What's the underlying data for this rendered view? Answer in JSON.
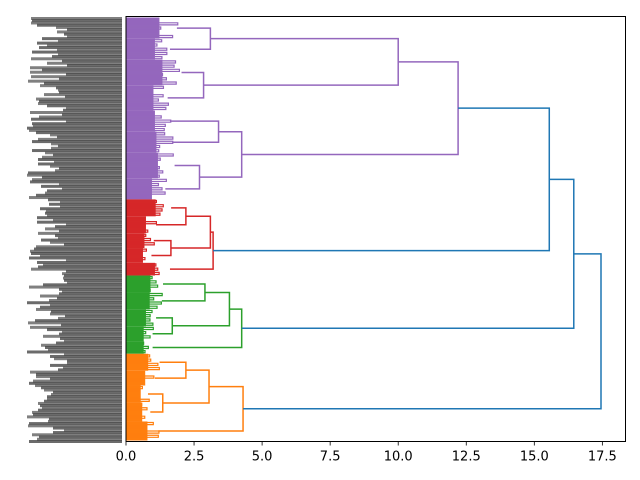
{
  "chart_data": {
    "type": "dendrogram",
    "orientation": "horizontal",
    "title": "",
    "xlabel": "",
    "ylabel": "",
    "xlim": [
      0,
      18.35
    ],
    "x_ticks": [
      0.0,
      2.5,
      5.0,
      7.5,
      10.0,
      12.5,
      15.0,
      17.5
    ],
    "x_tick_labels": [
      "0.0",
      "2.5",
      "5.0",
      "7.5",
      "10.0",
      "12.5",
      "15.0",
      "17.5"
    ],
    "grid": false,
    "leaf_labels_note": "Dense, overlapping leaf labels (illegible)",
    "colors": {
      "cluster_1": "#9467bd",
      "cluster_2": "#d62728",
      "cluster_3": "#2ca02c",
      "cluster_4": "#ff7f0e",
      "above_threshold": "#1f77b4"
    },
    "clusters": [
      {
        "name": "purple",
        "color": "#9467bd",
        "leaf_span": [
          0.0,
          0.43
        ],
        "merge_height": 12.2,
        "subclusters": [
          {
            "span": [
              0.0,
              0.22
            ],
            "height": 10.0,
            "children": [
              {
                "span": [
                  0.0,
                  0.1
                ],
                "height": 3.1,
                "children": [
                  {
                    "span": [
                      0.0,
                      0.05
                    ],
                    "height": 2.2
                  },
                  {
                    "span": [
                      0.05,
                      0.1
                    ],
                    "height": 1.9
                  }
                ]
              },
              {
                "span": [
                  0.1,
                  0.22
                ],
                "height": 2.85,
                "children": [
                  {
                    "span": [
                      0.1,
                      0.16
                    ],
                    "height": 2.4
                  },
                  {
                    "span": [
                      0.16,
                      0.22
                    ],
                    "height": 1.8
                  }
                ]
              }
            ]
          },
          {
            "span": [
              0.22,
              0.43
            ],
            "height": 4.25,
            "children": [
              {
                "span": [
                  0.22,
                  0.32
                ],
                "height": 3.4,
                "children": [
                  {
                    "span": [
                      0.22,
                      0.27
                    ],
                    "height": 1.9
                  },
                  {
                    "span": [
                      0.27,
                      0.32
                    ],
                    "height": 2.0
                  }
                ]
              },
              {
                "span": [
                  0.32,
                  0.43
                ],
                "height": 2.7,
                "children": [
                  {
                    "span": [
                      0.32,
                      0.38
                    ],
                    "height": 2.1
                  },
                  {
                    "span": [
                      0.38,
                      0.43
                    ],
                    "height": 1.7
                  }
                ]
              }
            ]
          }
        ]
      },
      {
        "name": "red",
        "color": "#d62728",
        "leaf_span": [
          0.43,
          0.61
        ],
        "merge_height": 3.2,
        "subclusters": [
          {
            "span": [
              0.43,
              0.58
            ],
            "height": 3.1,
            "children": [
              {
                "span": [
                  0.43,
                  0.51
                ],
                "height": 2.2,
                "children": [
                  {
                    "span": [
                      0.43,
                      0.47
                    ],
                    "height": 1.95
                  },
                  {
                    "span": [
                      0.47,
                      0.51
                    ],
                    "height": 1.3
                  }
                ]
              },
              {
                "span": [
                  0.51,
                  0.58
                ],
                "height": 1.65,
                "children": [
                  {
                    "span": [
                      0.51,
                      0.545
                    ],
                    "height": 1.2
                  },
                  {
                    "span": [
                      0.545,
                      0.58
                    ],
                    "height": 1.1
                  }
                ]
              }
            ]
          },
          {
            "span": [
              0.58,
              0.61
            ],
            "height": 1.9,
            "children": []
          }
        ]
      },
      {
        "name": "green",
        "color": "#2ca02c",
        "leaf_span": [
          0.61,
          0.795
        ],
        "merge_height": 4.25,
        "subclusters": [
          {
            "span": [
              0.61,
              0.765
            ],
            "height": 3.8,
            "children": [
              {
                "span": [
                  0.61,
                  0.69
                ],
                "height": 2.9,
                "children": [
                  {
                    "span": [
                      0.61,
                      0.65
                    ],
                    "height": 1.6
                  },
                  {
                    "span": [
                      0.65,
                      0.69
                    ],
                    "height": 1.55
                  }
                ]
              },
              {
                "span": [
                  0.69,
                  0.765
                ],
                "height": 1.7,
                "children": [
                  {
                    "span": [
                      0.69,
                      0.73
                    ],
                    "height": 1.3
                  },
                  {
                    "span": [
                      0.73,
                      0.765
                    ],
                    "height": 1.15
                  }
                ]
              }
            ]
          },
          {
            "span": [
              0.765,
              0.795
            ],
            "height": 1.15,
            "children": []
          }
        ]
      },
      {
        "name": "orange",
        "color": "#ff7f0e",
        "leaf_span": [
          0.795,
          1.0
        ],
        "merge_height": 4.3,
        "subclusters": [
          {
            "span": [
              0.795,
              0.955
            ],
            "height": 3.05,
            "children": [
              {
                "span": [
                  0.795,
                  0.87
                ],
                "height": 2.2,
                "children": [
                  {
                    "span": [
                      0.795,
                      0.835
                    ],
                    "height": 1.45
                  },
                  {
                    "span": [
                      0.835,
                      0.87
                    ],
                    "height": 1.25
                  }
                ]
              },
              {
                "span": [
                  0.87,
                  0.955
                ],
                "height": 1.35,
                "children": [
                  {
                    "span": [
                      0.87,
                      0.91
                    ],
                    "height": 0.95
                  },
                  {
                    "span": [
                      0.91,
                      0.955
                    ],
                    "height": 1.05
                  }
                ]
              }
            ]
          },
          {
            "span": [
              0.955,
              1.0
            ],
            "height": 1.4,
            "children": []
          }
        ]
      }
    ],
    "top_links": [
      {
        "joins": [
          "purple",
          "red"
        ],
        "height": 15.55
      },
      {
        "joins": [
          "purple+red",
          "green"
        ],
        "height": 16.45
      },
      {
        "joins": [
          "purple+red+green",
          "orange"
        ],
        "height": 17.45
      }
    ]
  }
}
